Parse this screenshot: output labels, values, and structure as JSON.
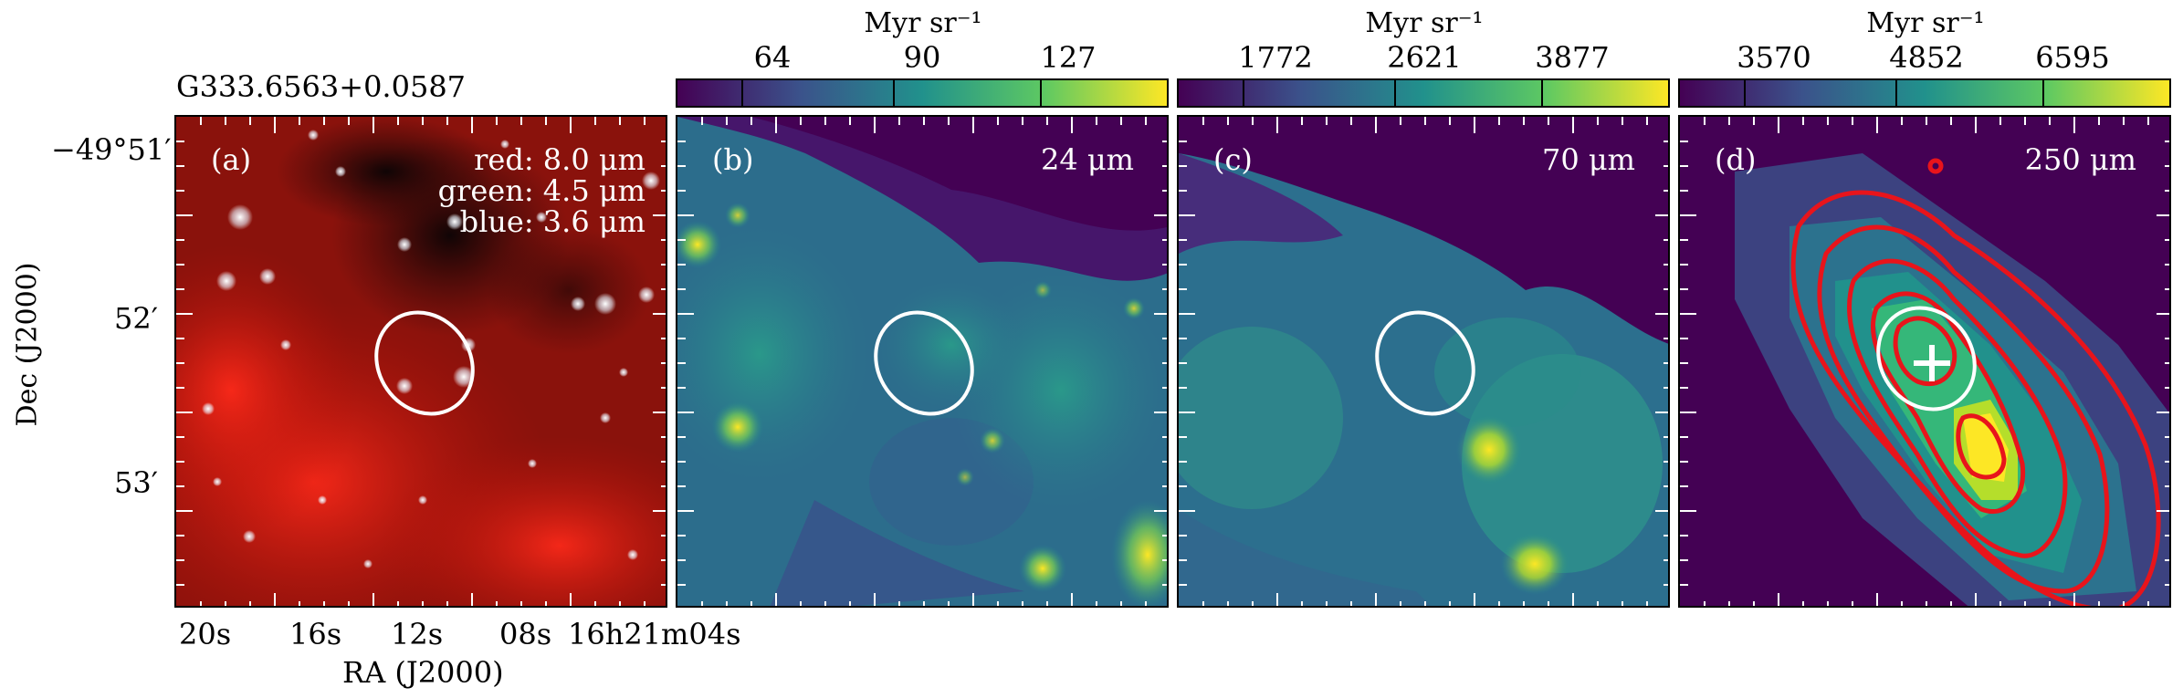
{
  "source_name": "G333.6563+0.0587",
  "axes": {
    "ylabel": "Dec (J2000)",
    "xlabel": "RA (J2000)",
    "dec_ticks": [
      "−49°51′",
      "52′",
      "53′"
    ],
    "ra_ticks": [
      "20s",
      "16s",
      "12s",
      "08s",
      "16h21m04s"
    ]
  },
  "panels": [
    {
      "id": "a",
      "tag": "(a)",
      "legend": [
        "red: 8.0 μm",
        "green: 4.5 μm",
        "blue: 3.6 μm"
      ]
    },
    {
      "id": "b",
      "tag": "(b)",
      "band": "24 μm",
      "colorbar": {
        "unit": "Myr sr⁻¹",
        "ticks": [
          "64",
          "90",
          "127"
        ]
      }
    },
    {
      "id": "c",
      "tag": "(c)",
      "band": "70 μm",
      "colorbar": {
        "unit": "Myr sr⁻¹",
        "ticks": [
          "1772",
          "2621",
          "3877"
        ]
      }
    },
    {
      "id": "d",
      "tag": "(d)",
      "band": "250 μm",
      "colorbar": {
        "unit": "Myr sr⁻¹",
        "ticks": [
          "3570",
          "4852",
          "6595"
        ]
      }
    }
  ],
  "colors": {
    "viridis_low": "#440154",
    "viridis_mid": "#21918c",
    "viridis_high": "#fde725",
    "contour": "#e8141b",
    "ellipse": "#ffffff"
  }
}
